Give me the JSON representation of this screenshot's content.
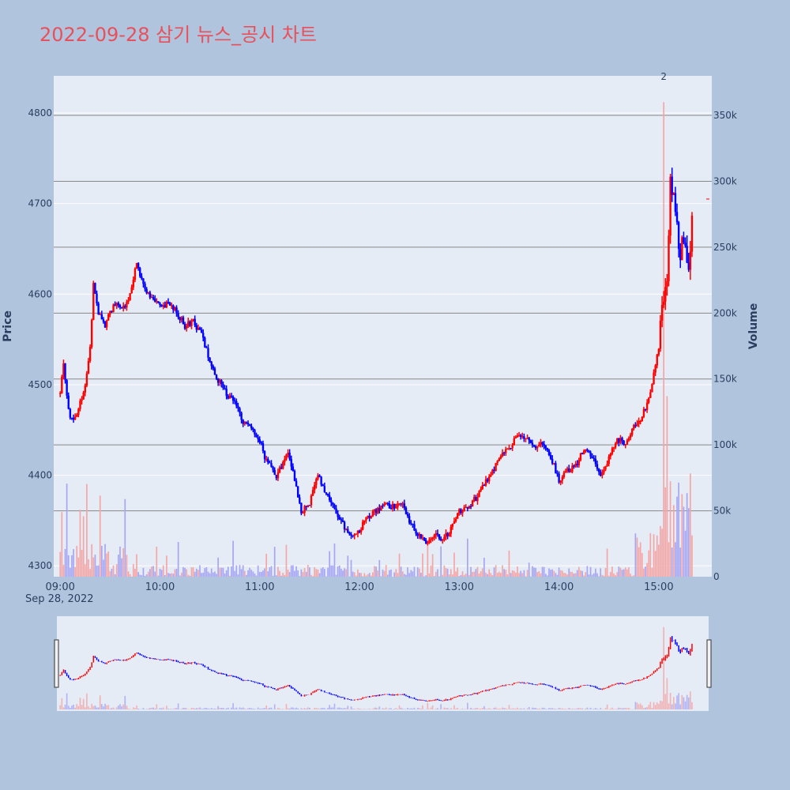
{
  "title": "2022-09-28 삼기 뉴스_공시 차트",
  "colors": {
    "up": "#ff0000",
    "down": "#0000ff",
    "up_volume": "#f4a6a6",
    "down_volume": "#a6a6f4",
    "title": "#e8505b",
    "plot_bg": "#e5ecf6",
    "page_bg": "#b0c4de"
  },
  "chart_data": {
    "type": "candlestick",
    "date_label": "Sep 28, 2022",
    "y_axis": {
      "label": "Price",
      "ticks": [
        4300,
        4400,
        4500,
        4600,
        4700,
        4800
      ],
      "range": [
        4288,
        4841
      ]
    },
    "y2_axis": {
      "label": "Volume",
      "ticks": [
        0,
        50000,
        100000,
        150000,
        200000,
        250000,
        300000,
        350000
      ],
      "tick_labels": [
        "0",
        "50k",
        "100k",
        "150k",
        "200k",
        "250k",
        "300k",
        "350k"
      ],
      "range": [
        0,
        380000
      ]
    },
    "x_axis": {
      "ticks": [
        "09:00",
        "10:00",
        "11:00",
        "12:00",
        "13:00",
        "14:00",
        "15:00"
      ],
      "range": [
        "08:58",
        "15:30"
      ]
    },
    "annotation": {
      "time": "15:03",
      "text": "2"
    },
    "last_close": 4705,
    "price_path": [
      [
        "09:00",
        4490
      ],
      [
        "09:02",
        4525
      ],
      [
        "09:05",
        4470
      ],
      [
        "09:08",
        4460
      ],
      [
        "09:12",
        4480
      ],
      [
        "09:15",
        4500
      ],
      [
        "09:18",
        4540
      ],
      [
        "09:20",
        4610
      ],
      [
        "09:23",
        4580
      ],
      [
        "09:27",
        4565
      ],
      [
        "09:30",
        4580
      ],
      [
        "09:33",
        4590
      ],
      [
        "09:37",
        4585
      ],
      [
        "09:40",
        4590
      ],
      [
        "09:43",
        4610
      ],
      [
        "09:46",
        4635
      ],
      [
        "09:50",
        4610
      ],
      [
        "09:55",
        4595
      ],
      [
        "10:00",
        4585
      ],
      [
        "10:05",
        4590
      ],
      [
        "10:10",
        4580
      ],
      [
        "10:15",
        4565
      ],
      [
        "10:20",
        4570
      ],
      [
        "10:25",
        4555
      ],
      [
        "10:30",
        4525
      ],
      [
        "10:35",
        4505
      ],
      [
        "10:40",
        4490
      ],
      [
        "10:45",
        4480
      ],
      [
        "10:50",
        4460
      ],
      [
        "10:55",
        4450
      ],
      [
        "11:00",
        4440
      ],
      [
        "11:03",
        4420
      ],
      [
        "11:06",
        4415
      ],
      [
        "11:10",
        4400
      ],
      [
        "11:13",
        4410
      ],
      [
        "11:17",
        4425
      ],
      [
        "11:20",
        4405
      ],
      [
        "11:25",
        4360
      ],
      [
        "11:30",
        4370
      ],
      [
        "11:35",
        4400
      ],
      [
        "11:40",
        4380
      ],
      [
        "11:45",
        4360
      ],
      [
        "11:50",
        4345
      ],
      [
        "11:55",
        4335
      ],
      [
        "12:00",
        4340
      ],
      [
        "12:05",
        4355
      ],
      [
        "12:10",
        4360
      ],
      [
        "12:15",
        4370
      ],
      [
        "12:20",
        4365
      ],
      [
        "12:25",
        4370
      ],
      [
        "12:30",
        4350
      ],
      [
        "12:35",
        4335
      ],
      [
        "12:40",
        4325
      ],
      [
        "12:45",
        4335
      ],
      [
        "12:50",
        4330
      ],
      [
        "12:55",
        4340
      ],
      [
        "13:00",
        4360
      ],
      [
        "13:05",
        4365
      ],
      [
        "13:10",
        4375
      ],
      [
        "13:15",
        4390
      ],
      [
        "13:20",
        4405
      ],
      [
        "13:25",
        4420
      ],
      [
        "13:30",
        4430
      ],
      [
        "13:35",
        4445
      ],
      [
        "13:40",
        4440
      ],
      [
        "13:45",
        4430
      ],
      [
        "13:50",
        4435
      ],
      [
        "13:55",
        4420
      ],
      [
        "14:00",
        4395
      ],
      [
        "14:05",
        4405
      ],
      [
        "14:10",
        4410
      ],
      [
        "14:15",
        4430
      ],
      [
        "14:20",
        4420
      ],
      [
        "14:25",
        4400
      ],
      [
        "14:30",
        4420
      ],
      [
        "14:35",
        4440
      ],
      [
        "14:40",
        4435
      ],
      [
        "14:45",
        4455
      ],
      [
        "14:50",
        4465
      ],
      [
        "14:55",
        4490
      ],
      [
        "15:00",
        4540
      ],
      [
        "15:02",
        4590
      ],
      [
        "15:05",
        4620
      ],
      [
        "15:07",
        4730
      ],
      [
        "15:10",
        4700
      ],
      [
        "15:12",
        4640
      ],
      [
        "15:15",
        4660
      ],
      [
        "15:18",
        4630
      ],
      [
        "15:20",
        4680
      ]
    ]
  }
}
